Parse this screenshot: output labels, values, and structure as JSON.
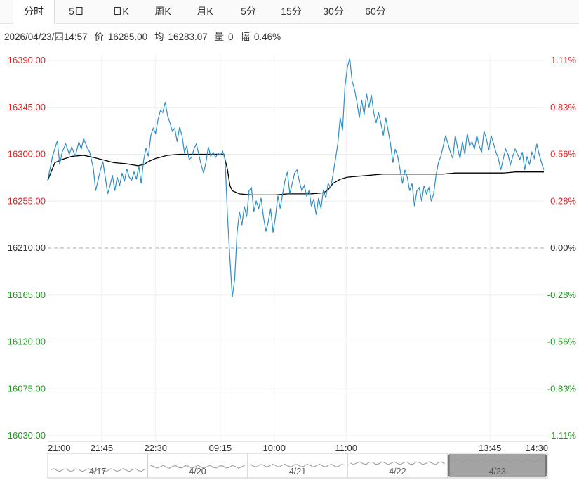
{
  "tabs": [
    {
      "label": "分时",
      "active": true
    },
    {
      "label": "5日",
      "active": false
    },
    {
      "label": "日K",
      "active": false
    },
    {
      "label": "周K",
      "active": false
    },
    {
      "label": "月K",
      "active": false
    },
    {
      "label": "5分",
      "active": false
    },
    {
      "label": "15分",
      "active": false
    },
    {
      "label": "30分",
      "active": false
    },
    {
      "label": "60分",
      "active": false
    }
  ],
  "info": {
    "datetime": "2026/04/23/四14:57",
    "price_label": "价",
    "price": "16285.00",
    "avg_label": "均",
    "avg": "16283.07",
    "volume_label": "量",
    "volume": "0",
    "change_label": "幅",
    "change": "0.46%"
  },
  "colors": {
    "price_line": "#2f8ec4",
    "avg_line": "#000000",
    "up": "#e02020",
    "down": "#1a9a1a",
    "flat": "#333333",
    "grid": "#eeeeee",
    "nav_selected": "#a3a3a3"
  },
  "chart_data": {
    "type": "line",
    "prev_close": 16210,
    "ylim": [
      16030,
      16390
    ],
    "y_ticks_left": [
      "16390.00",
      "16345.00",
      "16300.00",
      "16255.00",
      "16210.00",
      "16165.00",
      "16120.00",
      "16075.00",
      "16030.00"
    ],
    "y_ticks_right": [
      "1.11%",
      "0.83%",
      "0.56%",
      "0.28%",
      "0.00%",
      "-0.28%",
      "-0.56%",
      "-0.83%",
      "-1.11%"
    ],
    "x_ticks": [
      "21:00",
      "21:45",
      "22:30",
      "09:15",
      "10:00",
      "11:00",
      "13:45",
      "14:30"
    ],
    "x_tick_index": [
      0,
      45,
      90,
      144,
      189,
      249,
      369,
      414
    ],
    "n_points": 415,
    "price_anchors": [
      [
        0,
        16275
      ],
      [
        4,
        16298
      ],
      [
        8,
        16313
      ],
      [
        10,
        16290
      ],
      [
        12,
        16302
      ],
      [
        15,
        16310
      ],
      [
        18,
        16300
      ],
      [
        20,
        16307
      ],
      [
        23,
        16298
      ],
      [
        26,
        16312
      ],
      [
        28,
        16305
      ],
      [
        30,
        16315
      ],
      [
        33,
        16306
      ],
      [
        35,
        16302
      ],
      [
        38,
        16287
      ],
      [
        40,
        16265
      ],
      [
        42,
        16275
      ],
      [
        44,
        16285
      ],
      [
        46,
        16293
      ],
      [
        48,
        16278
      ],
      [
        50,
        16262
      ],
      [
        52,
        16270
      ],
      [
        54,
        16280
      ],
      [
        56,
        16265
      ],
      [
        58,
        16278
      ],
      [
        60,
        16270
      ],
      [
        62,
        16282
      ],
      [
        64,
        16274
      ],
      [
        66,
        16286
      ],
      [
        68,
        16278
      ],
      [
        70,
        16275
      ],
      [
        72,
        16283
      ],
      [
        74,
        16276
      ],
      [
        76,
        16289
      ],
      [
        78,
        16272
      ],
      [
        80,
        16294
      ],
      [
        82,
        16306
      ],
      [
        84,
        16298
      ],
      [
        86,
        16318
      ],
      [
        88,
        16325
      ],
      [
        90,
        16320
      ],
      [
        92,
        16333
      ],
      [
        94,
        16342
      ],
      [
        96,
        16340
      ],
      [
        98,
        16350
      ],
      [
        100,
        16337
      ],
      [
        102,
        16330
      ],
      [
        104,
        16322
      ],
      [
        106,
        16325
      ],
      [
        108,
        16312
      ],
      [
        110,
        16326
      ],
      [
        112,
        16318
      ],
      [
        114,
        16302
      ],
      [
        116,
        16308
      ],
      [
        118,
        16295
      ],
      [
        120,
        16297
      ],
      [
        122,
        16305
      ],
      [
        124,
        16310
      ],
      [
        126,
        16300
      ],
      [
        128,
        16290
      ],
      [
        130,
        16282
      ],
      [
        132,
        16292
      ],
      [
        134,
        16307
      ],
      [
        136,
        16298
      ],
      [
        138,
        16302
      ],
      [
        140,
        16297
      ],
      [
        142,
        16301
      ],
      [
        144,
        16299
      ],
      [
        146,
        16303
      ],
      [
        148,
        16295
      ],
      [
        150,
        16240
      ],
      [
        152,
        16200
      ],
      [
        154,
        16163
      ],
      [
        156,
        16180
      ],
      [
        158,
        16225
      ],
      [
        160,
        16245
      ],
      [
        162,
        16232
      ],
      [
        164,
        16250
      ],
      [
        166,
        16240
      ],
      [
        168,
        16265
      ],
      [
        170,
        16268
      ],
      [
        172,
        16245
      ],
      [
        174,
        16255
      ],
      [
        176,
        16248
      ],
      [
        178,
        16258
      ],
      [
        180,
        16240
      ],
      [
        182,
        16226
      ],
      [
        184,
        16235
      ],
      [
        186,
        16248
      ],
      [
        188,
        16225
      ],
      [
        190,
        16240
      ],
      [
        192,
        16260
      ],
      [
        194,
        16248
      ],
      [
        196,
        16262
      ],
      [
        198,
        16275
      ],
      [
        200,
        16283
      ],
      [
        202,
        16262
      ],
      [
        204,
        16272
      ],
      [
        206,
        16282
      ],
      [
        208,
        16285
      ],
      [
        210,
        16274
      ],
      [
        212,
        16265
      ],
      [
        214,
        16270
      ],
      [
        216,
        16260
      ],
      [
        218,
        16265
      ],
      [
        220,
        16250
      ],
      [
        222,
        16257
      ],
      [
        224,
        16242
      ],
      [
        226,
        16258
      ],
      [
        228,
        16248
      ],
      [
        230,
        16266
      ],
      [
        232,
        16258
      ],
      [
        234,
        16272
      ],
      [
        236,
        16268
      ],
      [
        238,
        16280
      ],
      [
        240,
        16295
      ],
      [
        242,
        16310
      ],
      [
        244,
        16335
      ],
      [
        246,
        16323
      ],
      [
        248,
        16365
      ],
      [
        250,
        16383
      ],
      [
        252,
        16392
      ],
      [
        254,
        16370
      ],
      [
        256,
        16362
      ],
      [
        258,
        16350
      ],
      [
        260,
        16335
      ],
      [
        262,
        16352
      ],
      [
        264,
        16338
      ],
      [
        266,
        16358
      ],
      [
        268,
        16345
      ],
      [
        270,
        16357
      ],
      [
        272,
        16340
      ],
      [
        274,
        16330
      ],
      [
        276,
        16340
      ],
      [
        278,
        16330
      ],
      [
        280,
        16318
      ],
      [
        282,
        16335
      ],
      [
        284,
        16323
      ],
      [
        286,
        16310
      ],
      [
        288,
        16292
      ],
      [
        290,
        16305
      ],
      [
        292,
        16298
      ],
      [
        294,
        16285
      ],
      [
        296,
        16272
      ],
      [
        298,
        16285
      ],
      [
        300,
        16278
      ],
      [
        302,
        16265
      ],
      [
        304,
        16272
      ],
      [
        306,
        16250
      ],
      [
        308,
        16265
      ],
      [
        310,
        16268
      ],
      [
        312,
        16255
      ],
      [
        314,
        16270
      ],
      [
        316,
        16262
      ],
      [
        318,
        16268
      ],
      [
        320,
        16255
      ],
      [
        322,
        16262
      ],
      [
        324,
        16280
      ],
      [
        326,
        16292
      ],
      [
        328,
        16298
      ],
      [
        330,
        16308
      ],
      [
        332,
        16318
      ],
      [
        334,
        16310
      ],
      [
        336,
        16302
      ],
      [
        338,
        16296
      ],
      [
        340,
        16318
      ],
      [
        342,
        16306
      ],
      [
        344,
        16296
      ],
      [
        346,
        16312
      ],
      [
        348,
        16300
      ],
      [
        350,
        16320
      ],
      [
        352,
        16308
      ],
      [
        354,
        16312
      ],
      [
        356,
        16305
      ],
      [
        358,
        16318
      ],
      [
        360,
        16308
      ],
      [
        362,
        16302
      ],
      [
        364,
        16322
      ],
      [
        366,
        16315
      ],
      [
        368,
        16304
      ],
      [
        370,
        16318
      ],
      [
        372,
        16310
      ],
      [
        374,
        16302
      ],
      [
        376,
        16296
      ],
      [
        378,
        16285
      ],
      [
        380,
        16295
      ],
      [
        382,
        16305
      ],
      [
        384,
        16300
      ],
      [
        386,
        16290
      ],
      [
        388,
        16298
      ],
      [
        390,
        16305
      ],
      [
        392,
        16300
      ],
      [
        394,
        16295
      ],
      [
        396,
        16302
      ],
      [
        398,
        16285
      ],
      [
        400,
        16298
      ],
      [
        402,
        16290
      ],
      [
        404,
        16302
      ],
      [
        406,
        16296
      ],
      [
        408,
        16310
      ],
      [
        410,
        16300
      ],
      [
        412,
        16292
      ],
      [
        414,
        16285
      ]
    ],
    "avg_anchors": [
      [
        0,
        16275
      ],
      [
        6,
        16292
      ],
      [
        12,
        16295
      ],
      [
        20,
        16298
      ],
      [
        30,
        16299
      ],
      [
        38,
        16297
      ],
      [
        45,
        16295
      ],
      [
        55,
        16292
      ],
      [
        65,
        16291
      ],
      [
        75,
        16289
      ],
      [
        80,
        16290
      ],
      [
        84,
        16293
      ],
      [
        90,
        16296
      ],
      [
        100,
        16299
      ],
      [
        110,
        16300
      ],
      [
        120,
        16300
      ],
      [
        130,
        16300
      ],
      [
        140,
        16300
      ],
      [
        147,
        16300
      ],
      [
        150,
        16285
      ],
      [
        152,
        16270
      ],
      [
        154,
        16265
      ],
      [
        160,
        16262
      ],
      [
        170,
        16261
      ],
      [
        180,
        16261
      ],
      [
        190,
        16261
      ],
      [
        200,
        16262
      ],
      [
        210,
        16262
      ],
      [
        220,
        16262
      ],
      [
        230,
        16263
      ],
      [
        234,
        16266
      ],
      [
        238,
        16272
      ],
      [
        244,
        16276
      ],
      [
        250,
        16278
      ],
      [
        260,
        16279
      ],
      [
        270,
        16280
      ],
      [
        280,
        16281
      ],
      [
        290,
        16281
      ],
      [
        300,
        16281
      ],
      [
        310,
        16281
      ],
      [
        320,
        16281
      ],
      [
        330,
        16281
      ],
      [
        340,
        16282
      ],
      [
        350,
        16282
      ],
      [
        360,
        16282
      ],
      [
        370,
        16282
      ],
      [
        380,
        16282
      ],
      [
        390,
        16283
      ],
      [
        400,
        16283
      ],
      [
        414,
        16283
      ]
    ],
    "navigator": {
      "dates": [
        "4/17",
        "4/20",
        "4/21",
        "4/22",
        "4/23"
      ],
      "selected": "4/23"
    }
  }
}
